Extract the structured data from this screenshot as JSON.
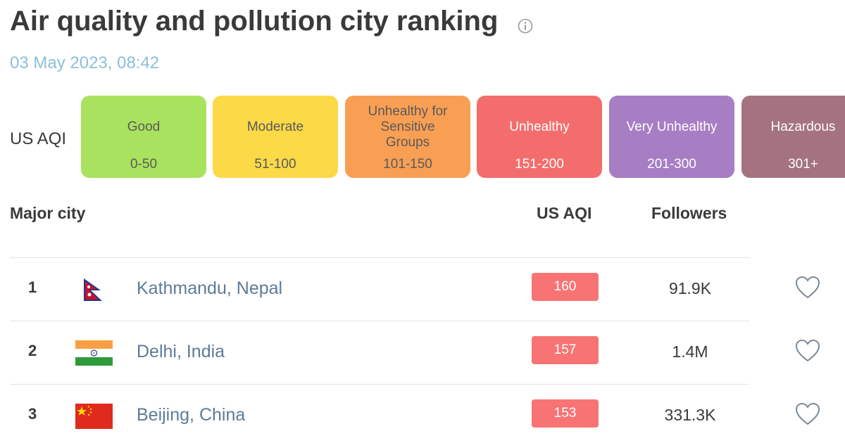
{
  "header": {
    "title": "Air quality and pollution city ranking",
    "timestamp": "03 May 2023, 08:42"
  },
  "scale": {
    "label": "US AQI",
    "levels": [
      {
        "name": "Good",
        "range": "0-50",
        "color": "#a9e25e"
      },
      {
        "name": "Moderate",
        "range": "51-100",
        "color": "#fbd947"
      },
      {
        "name": "Unhealthy for Sensitive Groups",
        "name_lines": [
          "Unhealthy for",
          "Sensitive",
          "Groups"
        ],
        "range": "101-150",
        "color": "#f89f54"
      },
      {
        "name": "Unhealthy",
        "range": "151-200",
        "color": "#f46d6d"
      },
      {
        "name": "Very Unhealthy",
        "range": "201-300",
        "color": "#a77dc4"
      },
      {
        "name": "Hazardous",
        "range": "301+",
        "color": "#a4737f"
      }
    ]
  },
  "table": {
    "headers": {
      "city": "Major city",
      "aqi": "US AQI",
      "followers": "Followers"
    },
    "rows": [
      {
        "rank": "1",
        "city": "Kathmandu, Nepal",
        "flag": "nepal-flag-icon",
        "aqi": "160",
        "followers": "91.9K"
      },
      {
        "rank": "2",
        "city": "Delhi, India",
        "flag": "india-flag-icon",
        "aqi": "157",
        "followers": "1.4M"
      },
      {
        "rank": "3",
        "city": "Beijing, China",
        "flag": "china-flag-icon",
        "aqi": "153",
        "followers": "331.3K"
      }
    ]
  },
  "colors": {
    "aqi_badge": "#f87474",
    "city_link": "#5e7a99",
    "timestamp": "#8dbfd8"
  }
}
